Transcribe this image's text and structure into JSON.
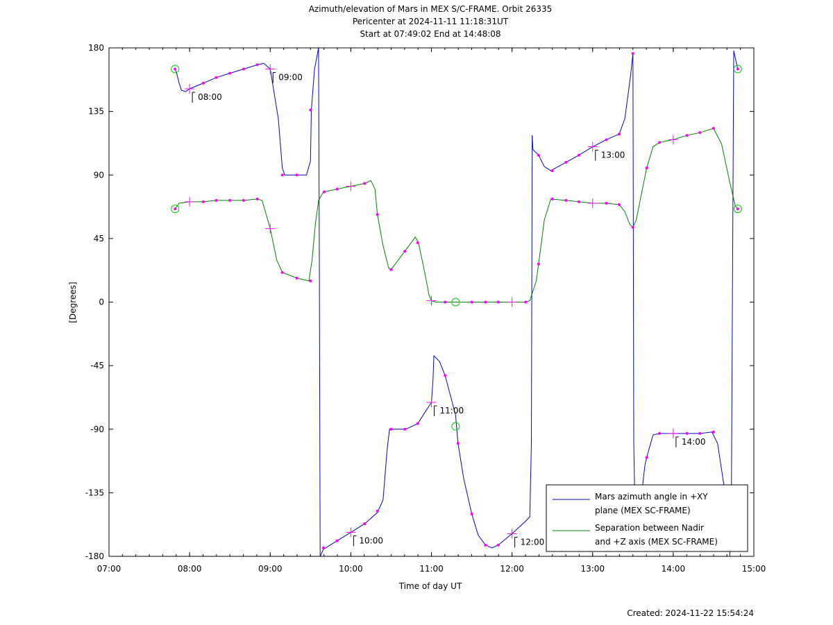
{
  "chart_data": {
    "type": "line",
    "title": [
      "Azimuth/elevation of Mars in MEX S/C-FRAME.  Orbit 26335",
      "Pericenter at 2024-11-11 11:18:31UT",
      "Start at 07:49:02 End at 14:48:08"
    ],
    "xlabel": "Time of day UT",
    "ylabel": "[Degrees]",
    "footer": "Created: 2024-11-22 15:54:24",
    "xlim": [
      7.0,
      15.0
    ],
    "ylim": [
      -180,
      180
    ],
    "x_ticks": [
      {
        "v": 7,
        "label": "07:00"
      },
      {
        "v": 8,
        "label": "08:00"
      },
      {
        "v": 9,
        "label": "09:00"
      },
      {
        "v": 10,
        "label": "10:00"
      },
      {
        "v": 11,
        "label": "11:00"
      },
      {
        "v": 12,
        "label": "12:00"
      },
      {
        "v": 13,
        "label": "13:00"
      },
      {
        "v": 14,
        "label": "14:00"
      },
      {
        "v": 15,
        "label": "15:00"
      }
    ],
    "y_ticks": [
      {
        "v": 180,
        "label": "180"
      },
      {
        "v": 135,
        "label": "135"
      },
      {
        "v": 90,
        "label": "90"
      },
      {
        "v": 45,
        "label": "45"
      },
      {
        "v": 0,
        "label": "0"
      },
      {
        "v": -45,
        "label": "-45"
      },
      {
        "v": -90,
        "label": "-90"
      },
      {
        "v": -135,
        "label": "-135"
      },
      {
        "v": -180,
        "label": "-180"
      }
    ],
    "grid": false,
    "legend_position": "bottom-right",
    "series": [
      {
        "name": "Mars azimuth angle in +XY plane (MEX SC-FRAME)",
        "legend_lines": [
          "Mars azimuth angle in +XY",
          "plane (MEX SC-FRAME)"
        ],
        "color": "#0000cc",
        "segments": [
          [
            [
              7.82,
              165
            ],
            [
              7.84,
              162
            ],
            [
              7.87,
              155
            ],
            [
              7.9,
              150
            ],
            [
              7.95,
              149
            ],
            [
              8.0,
              151
            ],
            [
              8.17,
              155
            ],
            [
              8.33,
              159
            ],
            [
              8.5,
              162
            ],
            [
              8.67,
              165
            ],
            [
              8.84,
              168
            ],
            [
              8.92,
              169
            ],
            [
              9.0,
              165
            ],
            [
              9.1,
              130
            ],
            [
              9.15,
              95
            ],
            [
              9.18,
              90
            ],
            [
              9.33,
              90
            ],
            [
              9.45,
              90
            ],
            [
              9.5,
              100
            ],
            [
              9.51,
              136
            ],
            [
              9.55,
              165
            ],
            [
              9.6,
              180
            ]
          ],
          [
            [
              9.6,
              180
            ],
            [
              9.61,
              20
            ],
            [
              9.62,
              -180
            ]
          ],
          [
            [
              9.62,
              -180
            ],
            [
              9.66,
              -175
            ],
            [
              9.83,
              -169
            ],
            [
              10.0,
              -163
            ],
            [
              10.17,
              -157
            ],
            [
              10.33,
              -149
            ],
            [
              10.4,
              -140
            ],
            [
              10.45,
              -105
            ],
            [
              10.48,
              -90
            ],
            [
              10.67,
              -90
            ],
            [
              10.72,
              -89
            ],
            [
              10.83,
              -86
            ],
            [
              10.92,
              -78
            ],
            [
              11.0,
              -71
            ],
            [
              11.02,
              -55
            ],
            [
              11.03,
              -38
            ],
            [
              11.1,
              -42
            ],
            [
              11.17,
              -52
            ],
            [
              11.3,
              -80
            ],
            [
              11.33,
              -100
            ],
            [
              11.4,
              -125
            ],
            [
              11.5,
              -150
            ],
            [
              11.58,
              -165
            ],
            [
              11.67,
              -172
            ],
            [
              11.75,
              -174
            ],
            [
              11.83,
              -172
            ],
            [
              12.0,
              -164
            ],
            [
              12.17,
              -155
            ],
            [
              12.22,
              -152
            ],
            [
              12.24,
              -100
            ],
            [
              12.25,
              118
            ]
          ],
          [
            [
              12.25,
              118
            ],
            [
              12.26,
              108
            ],
            [
              12.33,
              104
            ],
            [
              12.4,
              96
            ],
            [
              12.48,
              93
            ],
            [
              12.67,
              99
            ],
            [
              12.83,
              104
            ],
            [
              13.0,
              110
            ],
            [
              13.17,
              115
            ],
            [
              13.33,
              119
            ],
            [
              13.4,
              130
            ],
            [
              13.47,
              160
            ],
            [
              13.5,
              176
            ]
          ],
          [
            [
              13.5,
              176
            ],
            [
              13.51,
              -100
            ],
            [
              13.52,
              -130
            ]
          ],
          [
            [
              13.62,
              -130
            ],
            [
              13.65,
              -115
            ],
            [
              13.67,
              -110
            ],
            [
              13.75,
              -94
            ],
            [
              13.83,
              -93
            ],
            [
              14.0,
              -93
            ],
            [
              14.17,
              -93
            ],
            [
              14.33,
              -93
            ],
            [
              14.48,
              -92
            ],
            [
              14.55,
              -100
            ],
            [
              14.63,
              -130
            ],
            [
              14.65,
              -135
            ]
          ],
          [
            [
              14.7,
              -180
            ],
            [
              14.72,
              -150
            ],
            [
              14.75,
              178
            ],
            [
              14.78,
              170
            ],
            [
              14.8,
              165
            ]
          ]
        ]
      },
      {
        "name": "Separation between Nadir and +Z axis (MEX SC-FRAME)",
        "legend_lines": [
          "Separation between Nadir",
          "and +Z axis (MEX SC-FRAME)"
        ],
        "color": "#008000",
        "segments": [
          [
            [
              7.82,
              66
            ],
            [
              7.87,
              70
            ],
            [
              8.0,
              71
            ],
            [
              8.17,
              71
            ],
            [
              8.33,
              72
            ],
            [
              8.5,
              72
            ],
            [
              8.67,
              72
            ],
            [
              8.84,
              73
            ],
            [
              8.9,
              72
            ],
            [
              8.97,
              58
            ],
            [
              9.0,
              52
            ],
            [
              9.08,
              30
            ],
            [
              9.15,
              21
            ],
            [
              9.33,
              17
            ],
            [
              9.48,
              15
            ],
            [
              9.52,
              30
            ],
            [
              9.56,
              55
            ],
            [
              9.6,
              72
            ],
            [
              9.66,
              78
            ],
            [
              9.83,
              80
            ],
            [
              10.0,
              82
            ],
            [
              10.17,
              84
            ],
            [
              10.25,
              86
            ],
            [
              10.3,
              80
            ],
            [
              10.33,
              62
            ],
            [
              10.4,
              40
            ],
            [
              10.47,
              24
            ],
            [
              10.5,
              23
            ],
            [
              10.67,
              36
            ],
            [
              10.8,
              46
            ],
            [
              10.84,
              42
            ],
            [
              10.92,
              20
            ],
            [
              10.97,
              5
            ],
            [
              11.0,
              1
            ],
            [
              11.05,
              0
            ],
            [
              11.3,
              0
            ],
            [
              11.5,
              0
            ],
            [
              11.67,
              0
            ],
            [
              11.83,
              0
            ],
            [
              12.0,
              0
            ],
            [
              12.17,
              0
            ],
            [
              12.22,
              1
            ],
            [
              12.3,
              15
            ],
            [
              12.33,
              27
            ],
            [
              12.4,
              58
            ],
            [
              12.48,
              73
            ],
            [
              12.67,
              72
            ],
            [
              12.83,
              71
            ],
            [
              13.0,
              70
            ],
            [
              13.17,
              70
            ],
            [
              13.33,
              69
            ],
            [
              13.4,
              64
            ],
            [
              13.46,
              55
            ],
            [
              13.5,
              53
            ],
            [
              13.54,
              58
            ],
            [
              13.6,
              75
            ],
            [
              13.67,
              95
            ],
            [
              13.75,
              110
            ],
            [
              13.83,
              113
            ],
            [
              14.0,
              115
            ],
            [
              14.17,
              118
            ],
            [
              14.33,
              120
            ],
            [
              14.5,
              123
            ],
            [
              14.6,
              112
            ],
            [
              14.7,
              85
            ],
            [
              14.77,
              68
            ],
            [
              14.8,
              66
            ]
          ]
        ]
      }
    ],
    "data_markers": {
      "blue": [
        [
          7.82,
          165
        ],
        [
          8.17,
          155
        ],
        [
          8.33,
          159
        ],
        [
          8.5,
          162
        ],
        [
          8.67,
          165
        ],
        [
          8.84,
          168
        ],
        [
          9.15,
          90
        ],
        [
          9.33,
          90
        ],
        [
          9.5,
          136
        ],
        [
          9.66,
          -174
        ],
        [
          9.83,
          -169
        ],
        [
          10.17,
          -157
        ],
        [
          10.33,
          -148
        ],
        [
          10.5,
          -90
        ],
        [
          10.67,
          -90
        ],
        [
          10.83,
          -86
        ],
        [
          11.17,
          -52
        ],
        [
          11.33,
          -100
        ],
        [
          11.5,
          -150
        ],
        [
          11.67,
          -172
        ],
        [
          11.83,
          -172
        ],
        [
          12.33,
          104
        ],
        [
          12.5,
          93
        ],
        [
          12.67,
          99
        ],
        [
          12.83,
          104
        ],
        [
          13.17,
          115
        ],
        [
          13.33,
          119
        ],
        [
          13.5,
          176
        ],
        [
          13.67,
          -110
        ],
        [
          13.83,
          -93
        ],
        [
          14.17,
          -93
        ],
        [
          14.33,
          -93
        ],
        [
          14.5,
          -92
        ],
        [
          14.8,
          165
        ]
      ],
      "green": [
        [
          7.82,
          66
        ],
        [
          8.17,
          71
        ],
        [
          8.33,
          72
        ],
        [
          8.5,
          72
        ],
        [
          8.67,
          72
        ],
        [
          8.84,
          73
        ],
        [
          9.15,
          21
        ],
        [
          9.33,
          17
        ],
        [
          9.5,
          15
        ],
        [
          9.67,
          78
        ],
        [
          9.83,
          80
        ],
        [
          10.17,
          84
        ],
        [
          10.33,
          62
        ],
        [
          10.5,
          23
        ],
        [
          10.67,
          36
        ],
        [
          10.83,
          42
        ],
        [
          11.17,
          0
        ],
        [
          11.5,
          0
        ],
        [
          11.67,
          0
        ],
        [
          11.83,
          0
        ],
        [
          12.17,
          0
        ],
        [
          12.33,
          27
        ],
        [
          12.5,
          73
        ],
        [
          12.67,
          72
        ],
        [
          12.83,
          71
        ],
        [
          13.17,
          70
        ],
        [
          13.33,
          69
        ],
        [
          13.5,
          53
        ],
        [
          13.67,
          95
        ],
        [
          13.83,
          113
        ],
        [
          14.17,
          118
        ],
        [
          14.33,
          120
        ],
        [
          14.5,
          123
        ],
        [
          14.8,
          66
        ]
      ]
    },
    "time_markers": [
      {
        "x": 8.0,
        "y": 151,
        "label": "08:00"
      },
      {
        "x": 9.0,
        "y": 165,
        "label": "09:00"
      },
      {
        "x": 10.0,
        "y": -163,
        "label": "10:00"
      },
      {
        "x": 11.0,
        "y": -71,
        "label": "11:00"
      },
      {
        "x": 12.0,
        "y": -164,
        "label": "12:00"
      },
      {
        "x": 13.0,
        "y": 110,
        "label": "13:00"
      },
      {
        "x": 14.0,
        "y": -93,
        "label": "14:00"
      }
    ],
    "plain_crosses": [
      [
        8.0,
        71
      ],
      [
        9.0,
        52
      ],
      [
        10.0,
        82
      ],
      [
        11.0,
        1
      ],
      [
        12.0,
        0
      ],
      [
        13.0,
        70
      ],
      [
        14.0,
        115
      ]
    ],
    "circle_markers": [
      [
        7.82,
        165
      ],
      [
        7.82,
        66
      ],
      [
        11.3,
        0
      ],
      [
        11.3,
        -88
      ],
      [
        14.8,
        165
      ],
      [
        14.8,
        66
      ]
    ]
  }
}
